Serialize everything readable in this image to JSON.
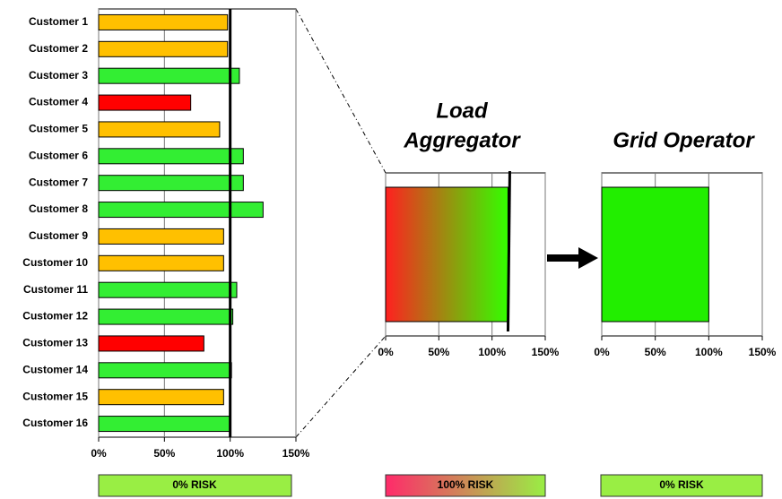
{
  "chart_data": [
    {
      "type": "hbar",
      "categories": [
        "Customer 1",
        "Customer 2",
        "Customer 3",
        "Customer 4",
        "Customer 5",
        "Customer 6",
        "Customer 7",
        "Customer 8",
        "Customer 9",
        "Customer 10",
        "Customer 11",
        "Customer 12",
        "Customer 13",
        "Customer 14",
        "Customer 15",
        "Customer 16"
      ],
      "values": [
        98,
        98,
        107,
        70,
        92,
        110,
        110,
        125,
        95,
        95,
        105,
        102,
        80,
        101,
        95,
        100
      ],
      "colors": [
        "#ffc000",
        "#ffc000",
        "#33ee33",
        "#ff0000",
        "#ffc000",
        "#33ee33",
        "#33ee33",
        "#33ee33",
        "#ffc000",
        "#ffc000",
        "#33ee33",
        "#33ee33",
        "#ff0000",
        "#33ee33",
        "#ffc000",
        "#33ee33"
      ],
      "reference_line": 100,
      "xlim": [
        0,
        150
      ],
      "xticks": [
        {
          "value": 0,
          "label": "0%"
        },
        {
          "value": 50,
          "label": "50%"
        },
        {
          "value": 100,
          "label": "100%"
        },
        {
          "value": 150,
          "label": "150%"
        }
      ],
      "grid": true
    },
    {
      "type": "hbar",
      "title": [
        "Load",
        "Aggregator"
      ],
      "values": [
        115
      ],
      "gradient": [
        "#ff2020",
        "#33ff00"
      ],
      "reference_line": 115,
      "xlim": [
        0,
        150
      ],
      "xticks": [
        {
          "value": 0,
          "label": "0%"
        },
        {
          "value": 50,
          "label": "50%"
        },
        {
          "value": 100,
          "label": "100%"
        },
        {
          "value": 150,
          "label": "150%"
        }
      ],
      "grid": true
    },
    {
      "type": "hbar",
      "title": [
        "Grid Operator"
      ],
      "values": [
        100
      ],
      "colors": [
        "#22ee00"
      ],
      "xlim": [
        0,
        150
      ],
      "xticks": [
        {
          "value": 0,
          "label": "0%"
        },
        {
          "value": 50,
          "label": "50%"
        },
        {
          "value": 100,
          "label": "100%"
        },
        {
          "value": 150,
          "label": "150%"
        }
      ],
      "grid": true
    }
  ],
  "risk_labels": [
    "0% RISK",
    "100% RISK",
    "0% RISK"
  ]
}
